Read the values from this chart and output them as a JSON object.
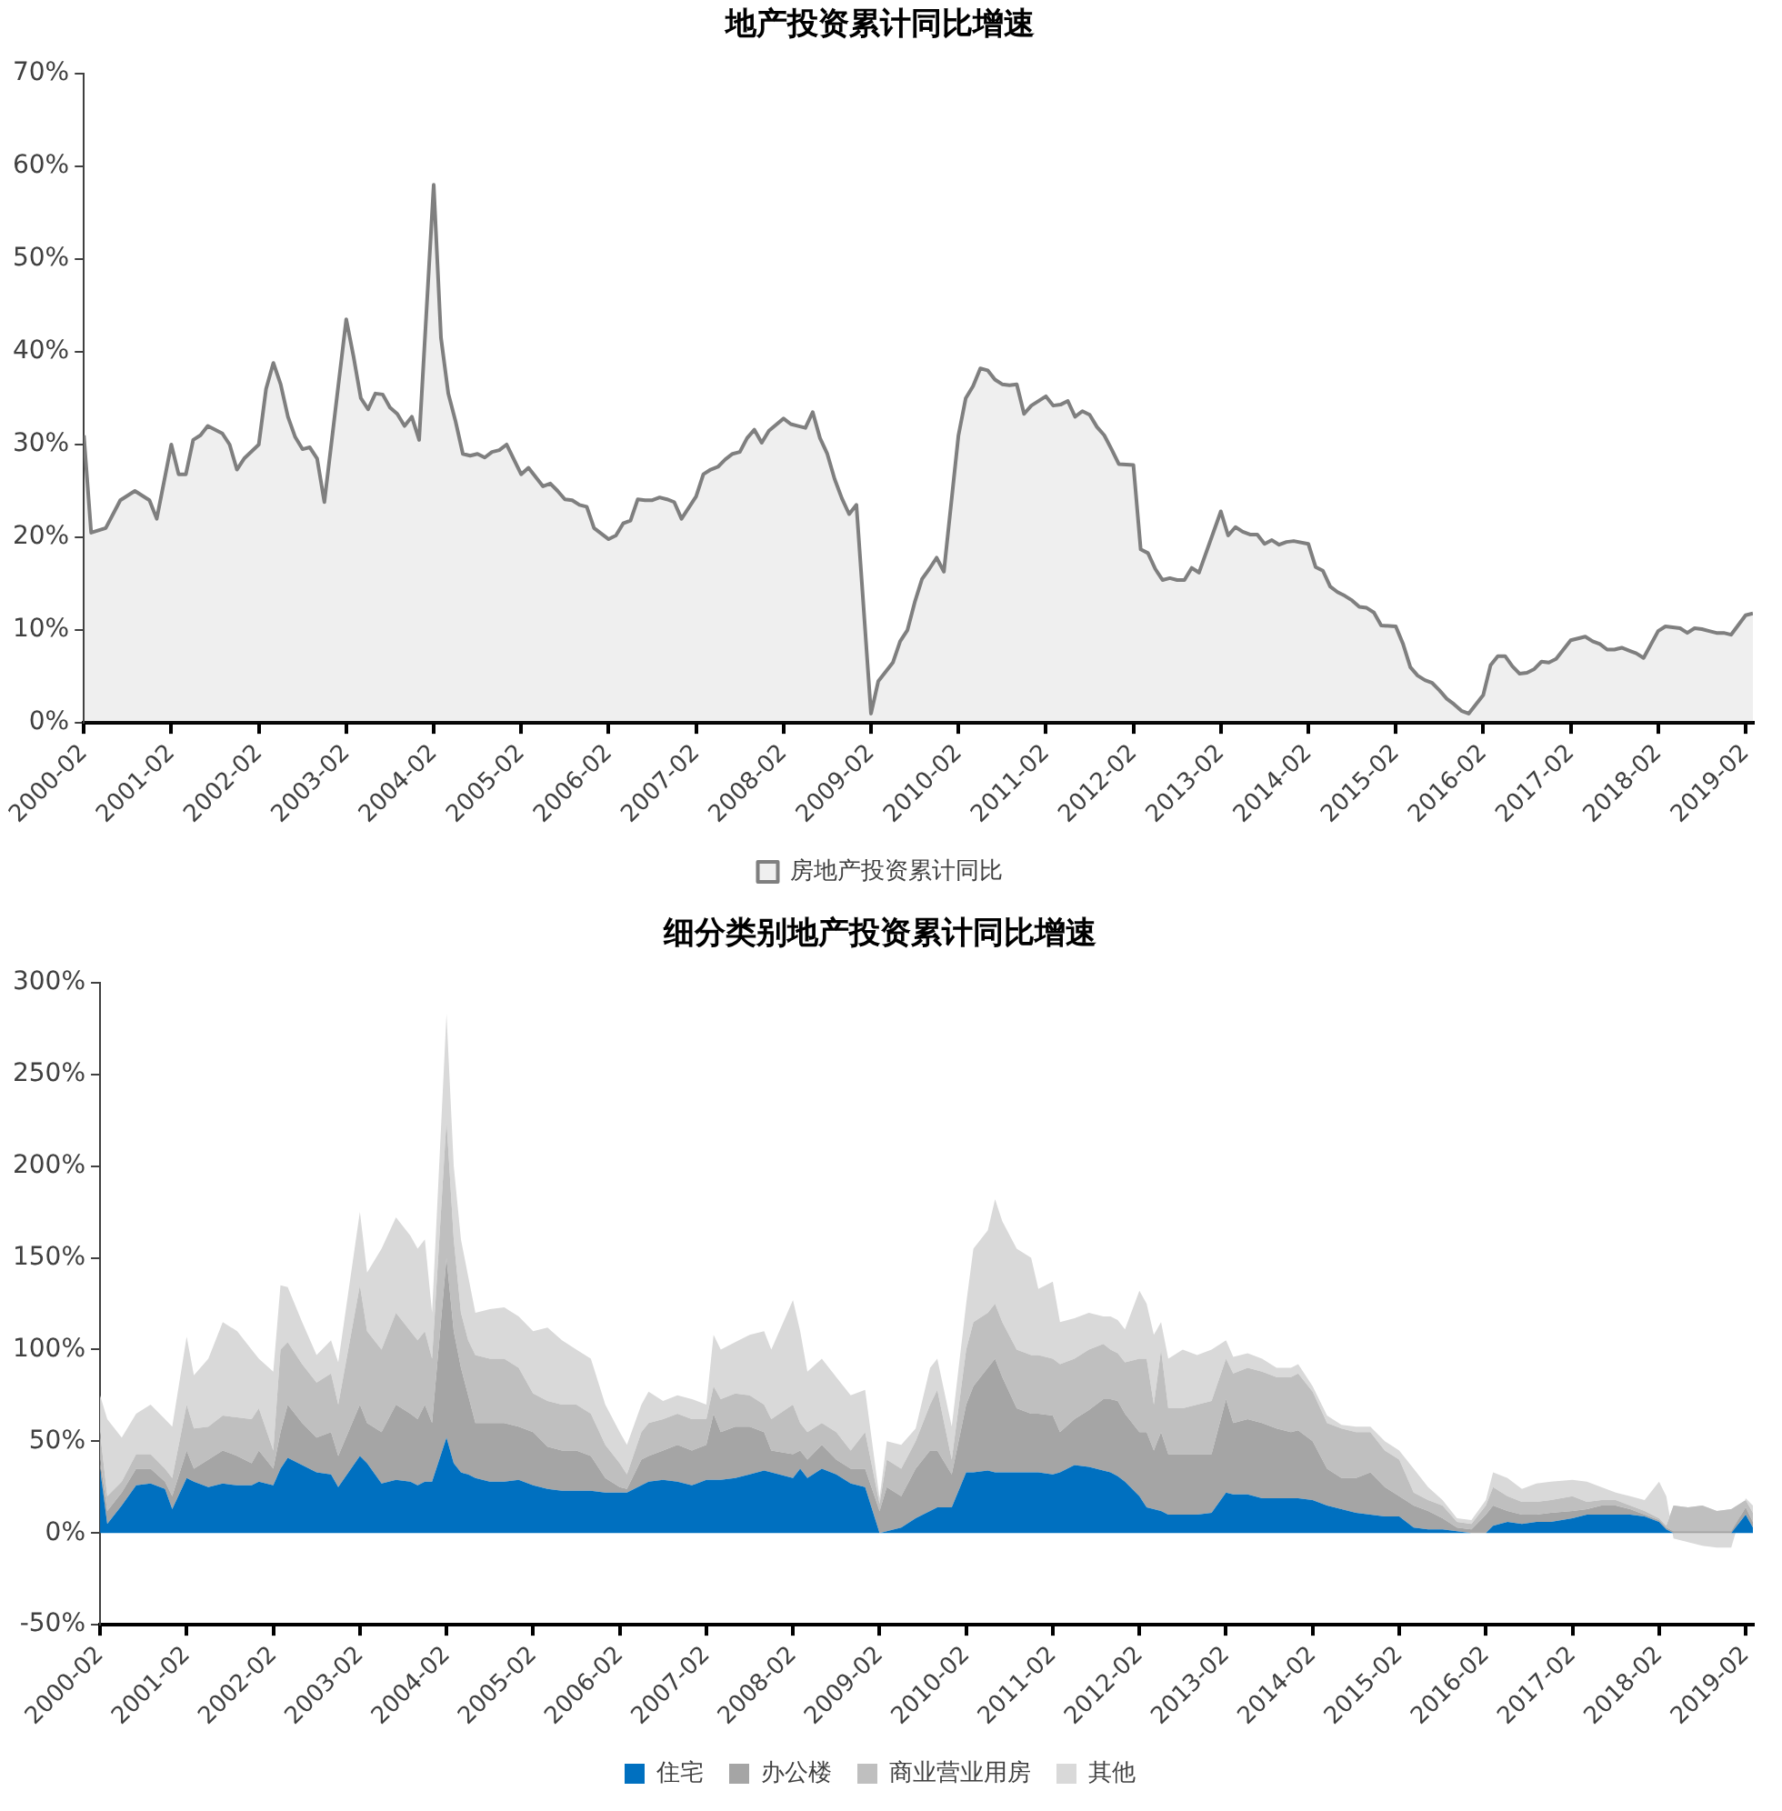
{
  "chart_data": [
    {
      "type": "area",
      "title": "地产投资累计同比增速",
      "legend": "bottom",
      "x": [
        "2000-02",
        "2000-03",
        "2000-05",
        "2000-07",
        "2000-09",
        "2000-11",
        "2000-12",
        "2001-02",
        "2001-03",
        "2001-04",
        "2001-05",
        "2001-06",
        "2001-07",
        "2001-09",
        "2001-10",
        "2001-11",
        "2001-12",
        "2002-02",
        "2002-03",
        "2002-04",
        "2002-05",
        "2002-06",
        "2002-07",
        "2002-08",
        "2002-09",
        "2002-10",
        "2002-11",
        "2003-02",
        "2003-03",
        "2003-04",
        "2003-05",
        "2003-06",
        "2003-07",
        "2003-08",
        "2003-09",
        "2003-10",
        "2003-11",
        "2003-12",
        "2004-02",
        "2004-03",
        "2004-04",
        "2004-05",
        "2004-06",
        "2004-07",
        "2004-08",
        "2004-09",
        "2004-10",
        "2004-11",
        "2004-12",
        "2005-02",
        "2005-03",
        "2005-04",
        "2005-05",
        "2005-06",
        "2005-07",
        "2005-08",
        "2005-09",
        "2005-10",
        "2005-11",
        "2005-12",
        "2006-02",
        "2006-03",
        "2006-04",
        "2006-05",
        "2006-06",
        "2006-07",
        "2006-08",
        "2006-09",
        "2006-10",
        "2006-11",
        "2006-12",
        "2007-02",
        "2007-03",
        "2007-04",
        "2007-05",
        "2007-06",
        "2007-07",
        "2007-08",
        "2007-09",
        "2007-10",
        "2007-11",
        "2007-12",
        "2008-02",
        "2008-03",
        "2008-04",
        "2008-05",
        "2008-06",
        "2008-07",
        "2008-08",
        "2008-09",
        "2008-10",
        "2008-11",
        "2008-12",
        "2009-02",
        "2009-03",
        "2009-04",
        "2009-05",
        "2009-06",
        "2009-07",
        "2009-08",
        "2009-09",
        "2009-10",
        "2009-11",
        "2009-12",
        "2010-02",
        "2010-03",
        "2010-04",
        "2010-05",
        "2010-06",
        "2010-07",
        "2010-08",
        "2010-09",
        "2010-10",
        "2010-11",
        "2010-12",
        "2011-02",
        "2011-03",
        "2011-04",
        "2011-05",
        "2011-06",
        "2011-07",
        "2011-08",
        "2011-09",
        "2011-10",
        "2011-11",
        "2011-12",
        "2012-02",
        "2012-03",
        "2012-04",
        "2012-05",
        "2012-06",
        "2012-07",
        "2012-08",
        "2012-09",
        "2012-10",
        "2012-11",
        "2013-02",
        "2013-03",
        "2013-04",
        "2013-05",
        "2013-06",
        "2013-07",
        "2013-08",
        "2013-09",
        "2013-10",
        "2013-11",
        "2013-12",
        "2014-02",
        "2014-03",
        "2014-04",
        "2014-05",
        "2014-06",
        "2014-07",
        "2014-08",
        "2014-09",
        "2014-10",
        "2014-11",
        "2014-12",
        "2015-02",
        "2015-03",
        "2015-04",
        "2015-05",
        "2015-06",
        "2015-07",
        "2015-08",
        "2015-09",
        "2015-10",
        "2015-11",
        "2015-12",
        "2016-02",
        "2016-03",
        "2016-04",
        "2016-05",
        "2016-06",
        "2016-07",
        "2016-08",
        "2016-09",
        "2016-10",
        "2016-11",
        "2016-12",
        "2017-02",
        "2017-03",
        "2017-04",
        "2017-05",
        "2017-06",
        "2017-07",
        "2017-08",
        "2017-09",
        "2017-10",
        "2017-11",
        "2017-12",
        "2018-02",
        "2018-03",
        "2018-04",
        "2018-05",
        "2018-06",
        "2018-07",
        "2018-08",
        "2018-09",
        "2018-10",
        "2018-11",
        "2018-12",
        "2019-02",
        "2019-03"
      ],
      "series": [
        {
          "name": "房地产投资累计同比",
          "color": "#7f7f7f",
          "values": [
            31,
            20.5,
            21,
            24,
            25,
            24,
            22,
            30,
            26.8,
            26.8,
            30.5,
            31,
            32,
            31.2,
            30,
            27.3,
            28.5,
            30,
            36,
            38.8,
            36.5,
            33,
            30.8,
            29.5,
            29.7,
            28.5,
            23.8,
            43.5,
            39.5,
            35,
            33.8,
            35.5,
            35.4,
            34,
            33.3,
            32,
            33,
            30.5,
            58,
            41.5,
            35.5,
            32.5,
            29,
            28.8,
            29,
            28.6,
            29.2,
            29.4,
            30,
            26.8,
            27.5,
            26.5,
            25.5,
            25.8,
            25,
            24.1,
            24,
            23.5,
            23.3,
            21,
            19.8,
            20.2,
            21.5,
            21.8,
            24.1,
            24,
            24,
            24.3,
            24.1,
            23.8,
            22,
            24.4,
            26.8,
            27.3,
            27.6,
            28.4,
            29,
            29.2,
            30.7,
            31.6,
            30.2,
            31.5,
            32.8,
            32.2,
            32,
            31.8,
            33.5,
            30.7,
            29,
            26.3,
            24.2,
            22.5,
            23.5,
            1,
            4.5,
            5.5,
            6.5,
            8.8,
            10,
            13,
            15.5,
            16.6,
            17.8,
            16.3,
            31,
            35,
            36.3,
            38.2,
            38,
            37,
            36.5,
            36.4,
            36.5,
            33.3,
            34.2,
            35.2,
            34.2,
            34.3,
            34.7,
            33,
            33.6,
            33.2,
            31.9,
            31,
            29.5,
            27.9,
            27.8,
            18.7,
            18.3,
            16.6,
            15.4,
            15.6,
            15.4,
            15.4,
            16.7,
            16.2,
            22.8,
            20.2,
            21.1,
            20.6,
            20.3,
            20.3,
            19.3,
            19.7,
            19.2,
            19.5,
            19.6,
            19.3,
            16.8,
            16.4,
            14.7,
            14.1,
            13.7,
            13.2,
            12.5,
            12.4,
            11.9,
            10.5,
            10.4,
            8.5,
            6,
            5.1,
            4.6,
            4.3,
            3.5,
            2.6,
            2,
            1.3,
            1,
            3,
            6.2,
            7.2,
            7.2,
            6.1,
            5.3,
            5.4,
            5.8,
            6.6,
            6.5,
            6.9,
            8.9,
            9.1,
            9.3,
            8.8,
            8.5,
            7.9,
            7.9,
            8.1,
            7.8,
            7.5,
            7,
            9.9,
            10.4,
            10.3,
            10.2,
            9.7,
            10.2,
            10.1,
            9.9,
            9.7,
            9.7,
            9.5,
            11.6,
            11.8
          ]
        }
      ],
      "xlim": [
        "2000-02",
        "2019-03"
      ],
      "xticks": [
        "2000-02",
        "2001-02",
        "2002-02",
        "2003-02",
        "2004-02",
        "2005-02",
        "2006-02",
        "2007-02",
        "2008-02",
        "2009-02",
        "2010-02",
        "2011-02",
        "2012-02",
        "2013-02",
        "2014-02",
        "2015-02",
        "2016-02",
        "2017-02",
        "2018-02",
        "2019-02"
      ],
      "ylim": [
        0,
        70
      ],
      "yticks": [
        {
          "value": 0,
          "label": "0%"
        },
        {
          "value": 10,
          "label": "10%"
        },
        {
          "value": 20,
          "label": "20%"
        },
        {
          "value": 30,
          "label": "30%"
        },
        {
          "value": 40,
          "label": "40%"
        },
        {
          "value": 50,
          "label": "50%"
        },
        {
          "value": 60,
          "label": "60%"
        },
        {
          "value": 70,
          "label": "70%"
        }
      ]
    },
    {
      "type": "area",
      "title": "细分类别地产投资累计同比增速",
      "legend": "bottom",
      "stacked": true,
      "x": [
        "2000-02",
        "2000-03",
        "2000-05",
        "2000-07",
        "2000-09",
        "2000-11",
        "2000-12",
        "2001-02",
        "2001-03",
        "2001-05",
        "2001-07",
        "2001-09",
        "2001-11",
        "2001-12",
        "2002-02",
        "2002-03",
        "2002-04",
        "2002-06",
        "2002-08",
        "2002-10",
        "2002-11",
        "2003-02",
        "2003-03",
        "2003-05",
        "2003-07",
        "2003-09",
        "2003-10",
        "2003-11",
        "2003-12",
        "2004-02",
        "2004-03",
        "2004-04",
        "2004-05",
        "2004-06",
        "2004-08",
        "2004-10",
        "2004-12",
        "2005-02",
        "2005-04",
        "2005-06",
        "2005-08",
        "2005-10",
        "2005-12",
        "2006-02",
        "2006-03",
        "2006-05",
        "2006-06",
        "2006-08",
        "2006-10",
        "2006-12",
        "2007-02",
        "2007-03",
        "2007-04",
        "2007-06",
        "2007-08",
        "2007-10",
        "2007-11",
        "2008-02",
        "2008-03",
        "2008-04",
        "2008-06",
        "2008-08",
        "2008-10",
        "2008-12",
        "2009-02",
        "2009-03",
        "2009-05",
        "2009-07",
        "2009-09",
        "2009-10",
        "2009-12",
        "2010-02",
        "2010-03",
        "2010-05",
        "2010-06",
        "2010-07",
        "2010-09",
        "2010-11",
        "2010-12",
        "2011-02",
        "2011-03",
        "2011-05",
        "2011-07",
        "2011-09",
        "2011-10",
        "2011-11",
        "2011-12",
        "2012-02",
        "2012-03",
        "2012-04",
        "2012-05",
        "2012-06",
        "2012-08",
        "2012-10",
        "2012-12",
        "2013-02",
        "2013-03",
        "2013-05",
        "2013-07",
        "2013-09",
        "2013-11",
        "2013-12",
        "2014-02",
        "2014-04",
        "2014-06",
        "2014-08",
        "2014-10",
        "2014-12",
        "2015-02",
        "2015-04",
        "2015-06",
        "2015-08",
        "2015-10",
        "2015-12",
        "2016-02",
        "2016-03",
        "2016-05",
        "2016-07",
        "2016-09",
        "2016-11",
        "2017-02",
        "2017-04",
        "2017-06",
        "2017-08",
        "2017-10",
        "2017-12",
        "2018-02",
        "2018-03",
        "2018-04",
        "2018-06",
        "2018-08",
        "2018-10",
        "2018-12",
        "2019-02",
        "2019-03"
      ],
      "series": [
        {
          "name": "住宅",
          "color": "#0070c0",
          "values": [
            35,
            5,
            15,
            26,
            27,
            24,
            13,
            30,
            28,
            25,
            27,
            26,
            26,
            28,
            26,
            35,
            41,
            37,
            33,
            32,
            25,
            42,
            38,
            27,
            29,
            28,
            26,
            28,
            28,
            52,
            38,
            33,
            32,
            30,
            28,
            28,
            29,
            26,
            24,
            23,
            23,
            23,
            22,
            22,
            22,
            26,
            28,
            29,
            28,
            26,
            29,
            29,
            29,
            30,
            32,
            34,
            33,
            30,
            35,
            30,
            35,
            32,
            27,
            25,
            0,
            1,
            3,
            8,
            12,
            14,
            14,
            33,
            33,
            34,
            33,
            33,
            33,
            33,
            33,
            32,
            33,
            37,
            36,
            34,
            33,
            31,
            28,
            20,
            14,
            13,
            12,
            10,
            10,
            10,
            11,
            22,
            21,
            21,
            19,
            19,
            19,
            19,
            18,
            15,
            13,
            11,
            10,
            9,
            9,
            3,
            2,
            2,
            1,
            0,
            0,
            4,
            6,
            5,
            6,
            6,
            8,
            10,
            10,
            10,
            10,
            9,
            6,
            2,
            0,
            0,
            0,
            0,
            0,
            10,
            3
          ]
        },
        {
          "name": "办公楼",
          "color": "#a5a5a5",
          "values": [
            5,
            7,
            7,
            9,
            8,
            4,
            7,
            15,
            7,
            15,
            18,
            16,
            12,
            17,
            9,
            20,
            29,
            23,
            19,
            23,
            17,
            28,
            22,
            28,
            41,
            37,
            36,
            42,
            32,
            98,
            72,
            57,
            43,
            30,
            32,
            32,
            29,
            29,
            23,
            22,
            22,
            19,
            8,
            3,
            2,
            14,
            14,
            16,
            20,
            19,
            19,
            36,
            26,
            28,
            26,
            21,
            12,
            13,
            10,
            10,
            13,
            8,
            8,
            10,
            12,
            24,
            17,
            27,
            33,
            31,
            18,
            37,
            47,
            56,
            62,
            52,
            35,
            32,
            32,
            32,
            22,
            25,
            31,
            39,
            40,
            41,
            37,
            35,
            41,
            32,
            43,
            33,
            33,
            33,
            32,
            51,
            39,
            41,
            41,
            38,
            36,
            37,
            32,
            20,
            17,
            19,
            23,
            16,
            11,
            12,
            10,
            6,
            2,
            2,
            10,
            11,
            6,
            5,
            4,
            5,
            4,
            3,
            5,
            5,
            3,
            1,
            1,
            1,
            1,
            1,
            1,
            1,
            1,
            4,
            3
          ]
        },
        {
          "name": "商业营业用房",
          "color": "#bfbfbf",
          "values": [
            15,
            8,
            6,
            8,
            8,
            7,
            10,
            25,
            22,
            18,
            19,
            21,
            24,
            23,
            10,
            45,
            34,
            32,
            30,
            32,
            28,
            65,
            50,
            45,
            50,
            45,
            43,
            40,
            35,
            75,
            50,
            30,
            30,
            37,
            35,
            35,
            32,
            21,
            25,
            25,
            25,
            23,
            18,
            13,
            8,
            15,
            18,
            17,
            17,
            17,
            14,
            15,
            18,
            18,
            17,
            15,
            17,
            27,
            15,
            15,
            12,
            15,
            10,
            20,
            4,
            15,
            15,
            15,
            25,
            33,
            8,
            30,
            35,
            30,
            30,
            30,
            32,
            32,
            32,
            31,
            37,
            33,
            33,
            30,
            27,
            26,
            28,
            40,
            40,
            25,
            45,
            25,
            25,
            27,
            29,
            22,
            27,
            28,
            28,
            28,
            30,
            31,
            27,
            25,
            27,
            25,
            22,
            20,
            20,
            7,
            6,
            7,
            3,
            3,
            5,
            10,
            8,
            7,
            7,
            7,
            8,
            4,
            3,
            3,
            2,
            2,
            1,
            1,
            14,
            13,
            14,
            11,
            12,
            4,
            5
          ]
        },
        {
          "name": "其他",
          "color": "#d9d9d9",
          "values": [
            20,
            42,
            24,
            22,
            27,
            27,
            28,
            37,
            29,
            37,
            51,
            47,
            38,
            27,
            43,
            35,
            30,
            23,
            15,
            18,
            23,
            40,
            32,
            55,
            52,
            52,
            50,
            50,
            25,
            58,
            40,
            40,
            35,
            23,
            27,
            28,
            28,
            34,
            40,
            35,
            30,
            30,
            22,
            17,
            16,
            15,
            17,
            10,
            10,
            11,
            8,
            28,
            27,
            28,
            33,
            40,
            38,
            57,
            50,
            33,
            35,
            30,
            30,
            23,
            3,
            10,
            13,
            7,
            20,
            17,
            18,
            25,
            40,
            45,
            57,
            55,
            55,
            53,
            36,
            42,
            23,
            22,
            20,
            15,
            18,
            18,
            18,
            37,
            30,
            38,
            15,
            27,
            32,
            27,
            28,
            10,
            9,
            8,
            7,
            5,
            5,
            5,
            3,
            4,
            2,
            3,
            3,
            5,
            5,
            13,
            7,
            3,
            2,
            2,
            3,
            8,
            10,
            7,
            10,
            10,
            9,
            11,
            7,
            4,
            5,
            6,
            20,
            16,
            -18,
            -19,
            -22,
            -20,
            -21,
            1,
            4
          ]
        }
      ],
      "xlim": [
        "2000-02",
        "2019-03"
      ],
      "xticks": [
        "2000-02",
        "2001-02",
        "2002-02",
        "2003-02",
        "2004-02",
        "2005-02",
        "2006-02",
        "2007-02",
        "2008-02",
        "2009-02",
        "2010-02",
        "2011-02",
        "2012-02",
        "2013-02",
        "2014-02",
        "2015-02",
        "2016-02",
        "2017-02",
        "2018-02",
        "2019-02"
      ],
      "ylim": [
        -50,
        300
      ],
      "yticks": [
        {
          "value": -50,
          "label": "-50%"
        },
        {
          "value": 0,
          "label": "0%"
        },
        {
          "value": 50,
          "label": "50%"
        },
        {
          "value": 100,
          "label": "100%"
        },
        {
          "value": 150,
          "label": "150%"
        },
        {
          "value": 200,
          "label": "200%"
        },
        {
          "value": 250,
          "label": "250%"
        },
        {
          "value": 300,
          "label": "300%"
        }
      ]
    }
  ]
}
